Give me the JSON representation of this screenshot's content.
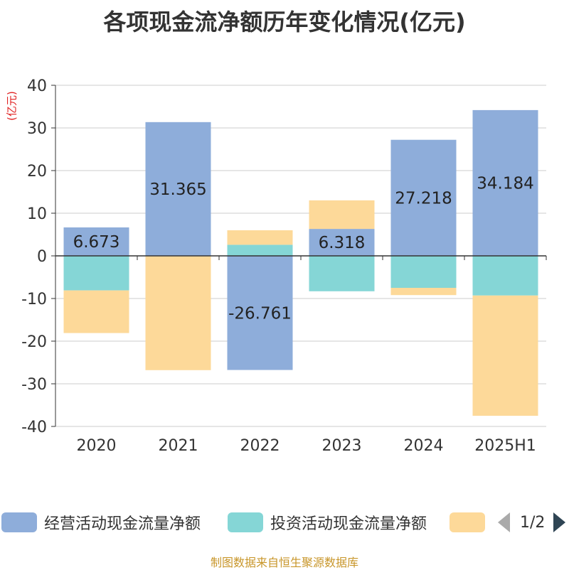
{
  "title": "各项现金流净额历年变化情况(亿元)",
  "unit_label": "(亿元)",
  "source": "制图数据来自恒生聚源数据库",
  "pager": "1/2",
  "colors": {
    "operating": "#8eadda",
    "investing": "#85d6d6",
    "financing": "#fdd999",
    "grid": "#cccccc",
    "axis": "#333333"
  },
  "chart_data": {
    "type": "bar",
    "stacked": true,
    "categories": [
      "2020",
      "2021",
      "2022",
      "2023",
      "2024",
      "2025H1"
    ],
    "ylim": [
      -40,
      40
    ],
    "yticks": [
      40,
      30,
      20,
      10,
      0,
      -10,
      -20,
      -30,
      -40
    ],
    "grid": true,
    "legend_position": "bottom",
    "series": [
      {
        "name": "经营活动现金流量净额",
        "values": [
          6.673,
          31.365,
          -26.761,
          6.318,
          27.218,
          34.184
        ],
        "labels": [
          "6.673",
          "31.365",
          "-26.761",
          "6.318",
          "27.218",
          "34.184"
        ]
      },
      {
        "name": "投资活动现金流量净额",
        "values": [
          -8.1,
          -0.1,
          2.6,
          -8.3,
          -7.5,
          -9.3
        ]
      },
      {
        "name": "",
        "values": [
          -10.0,
          -26.7,
          3.4,
          6.7,
          -1.7,
          -28.2
        ]
      }
    ]
  }
}
